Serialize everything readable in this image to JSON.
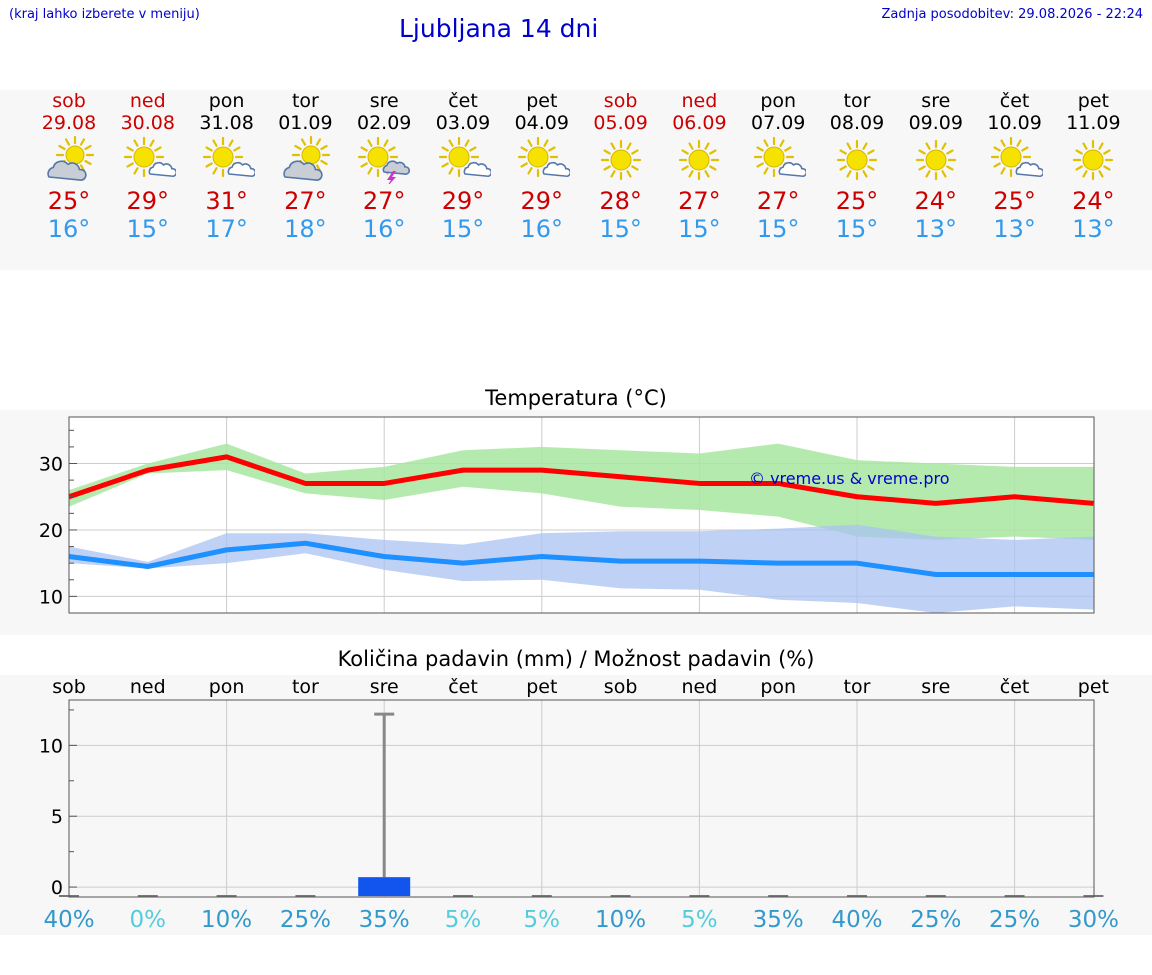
{
  "header": {
    "hint": "(kraj lahko izberete v meniju)",
    "title": "Ljubljana 14 dni",
    "updated": "Zadnja posodobitev: 29.08.2026 - 22:24"
  },
  "days": [
    {
      "name": "sob",
      "date": "29.08",
      "weekend": true,
      "icon": "cloud-sun-icon",
      "tmax": "25°",
      "tmin": "16°"
    },
    {
      "name": "ned",
      "date": "30.08",
      "weekend": true,
      "icon": "sun-cloud-icon",
      "tmax": "29°",
      "tmin": "15°"
    },
    {
      "name": "pon",
      "date": "31.08",
      "weekend": false,
      "icon": "sun-cloud-icon",
      "tmax": "31°",
      "tmin": "17°"
    },
    {
      "name": "tor",
      "date": "01.09",
      "weekend": false,
      "icon": "cloud-sun-icon",
      "tmax": "27°",
      "tmin": "18°"
    },
    {
      "name": "sre",
      "date": "02.09",
      "weekend": false,
      "icon": "sun-storm-icon",
      "tmax": "27°",
      "tmin": "16°"
    },
    {
      "name": "čet",
      "date": "03.09",
      "weekend": false,
      "icon": "sun-cloud-icon",
      "tmax": "29°",
      "tmin": "15°"
    },
    {
      "name": "pet",
      "date": "04.09",
      "weekend": false,
      "icon": "sun-cloud-icon",
      "tmax": "29°",
      "tmin": "16°"
    },
    {
      "name": "sob",
      "date": "05.09",
      "weekend": true,
      "icon": "sun-icon",
      "tmax": "28°",
      "tmin": "15°"
    },
    {
      "name": "ned",
      "date": "06.09",
      "weekend": true,
      "icon": "sun-icon",
      "tmax": "27°",
      "tmin": "15°"
    },
    {
      "name": "pon",
      "date": "07.09",
      "weekend": false,
      "icon": "sun-cloud-icon",
      "tmax": "27°",
      "tmin": "15°"
    },
    {
      "name": "tor",
      "date": "08.09",
      "weekend": false,
      "icon": "sun-icon",
      "tmax": "25°",
      "tmin": "15°"
    },
    {
      "name": "sre",
      "date": "09.09",
      "weekend": false,
      "icon": "sun-icon",
      "tmax": "24°",
      "tmin": "13°"
    },
    {
      "name": "čet",
      "date": "10.09",
      "weekend": false,
      "icon": "sun-cloud-icon",
      "tmax": "25°",
      "tmin": "13°"
    },
    {
      "name": "pet",
      "date": "11.09",
      "weekend": false,
      "icon": "sun-icon",
      "tmax": "24°",
      "tmin": "13°"
    }
  ],
  "colors": {
    "title": "#0000cc",
    "weekend": "#cc0000",
    "tmax_line": "#ff0000",
    "tmax_band": "#a8e6a0",
    "tmin_line": "#1e90ff",
    "tmin_band": "#a9c3f2",
    "rain_bar": "#1155ee",
    "error_bar": "#888888"
  },
  "chart_data": [
    {
      "type": "line",
      "title": "Temperatura (°C)",
      "watermark": "© vreme.us & vreme.pro",
      "x": [
        "29.08",
        "30.08",
        "31.08",
        "01.09",
        "02.09",
        "03.09",
        "04.09",
        "05.09",
        "06.09",
        "07.09",
        "08.09",
        "09.09",
        "10.09",
        "11.09"
      ],
      "y_ticks": [
        10,
        20,
        30
      ],
      "ylim": [
        7.5,
        37
      ],
      "grid": true,
      "series": [
        {
          "values": [
            25,
            29,
            31,
            27,
            27,
            29,
            29,
            28,
            27,
            27,
            25,
            24,
            25,
            24
          ],
          "band_low": [
            23.5,
            28.5,
            29,
            25.5,
            24.5,
            26.5,
            25.5,
            23.5,
            23,
            22,
            19,
            18.5,
            19,
            18.5
          ],
          "band_high": [
            26,
            30,
            33,
            28.5,
            29.5,
            32,
            32.5,
            32,
            31.5,
            33,
            30.5,
            30,
            29.5,
            29.5
          ]
        },
        {
          "values": [
            16,
            14.5,
            17,
            18,
            16,
            15,
            16,
            15.3,
            15.3,
            15,
            15,
            13.3,
            13.3,
            13.3
          ],
          "band_low": [
            15,
            14.2,
            15,
            16.5,
            14,
            12.3,
            12.5,
            11.2,
            11,
            9.5,
            9,
            7.5,
            8.5,
            8
          ],
          "band_high": [
            17.5,
            15.2,
            19.5,
            19.5,
            18.5,
            17.8,
            19.5,
            19.8,
            19.8,
            20.2,
            20.8,
            19,
            18.5,
            19
          ]
        }
      ]
    },
    {
      "type": "bar",
      "title": "Količina padavin (mm) / Možnost padavin (%)",
      "categories": [
        "sob",
        "ned",
        "pon",
        "tor",
        "sre",
        "čet",
        "pet",
        "sob",
        "ned",
        "pon",
        "tor",
        "sre",
        "čet",
        "pet"
      ],
      "values": [
        0,
        0,
        0,
        0,
        0.7,
        0,
        0,
        0,
        0,
        0,
        0,
        0,
        0,
        0
      ],
      "error_high": [
        0,
        0,
        0,
        0,
        12.2,
        0,
        0,
        0,
        0,
        0,
        0,
        0,
        0,
        0
      ],
      "y_ticks": [
        0,
        5,
        10
      ],
      "ylim": [
        -0.7,
        13.2
      ],
      "grid": true,
      "chances": [
        "40%",
        "0%",
        "10%",
        "25%",
        "35%",
        "5%",
        "5%",
        "10%",
        "5%",
        "35%",
        "40%",
        "25%",
        "25%",
        "30%"
      ],
      "chance_values": [
        40,
        0,
        10,
        25,
        35,
        5,
        5,
        10,
        5,
        35,
        40,
        25,
        25,
        30
      ]
    }
  ]
}
